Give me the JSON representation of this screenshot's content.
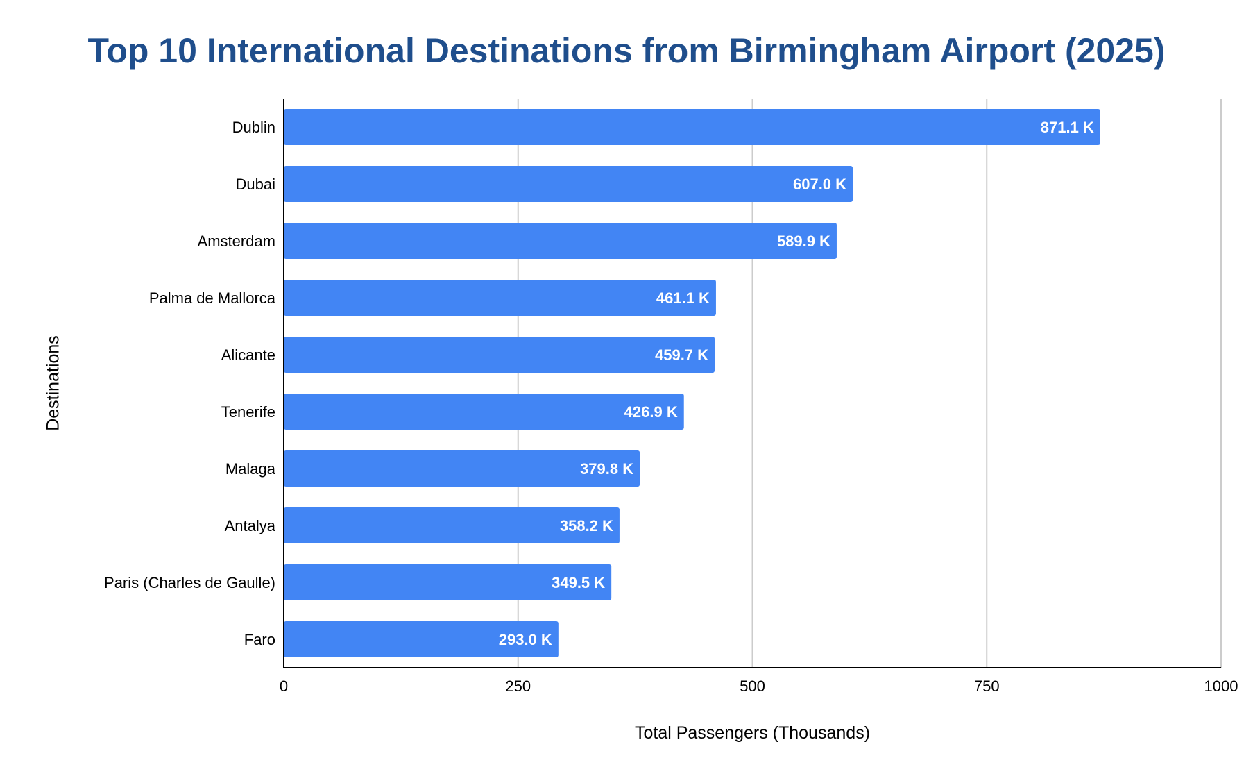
{
  "chart_data": {
    "type": "bar",
    "orientation": "horizontal",
    "title": "Top 10 International Destinations from Birmingham Airport (2025)",
    "xlabel": "Total Passengers (Thousands)",
    "ylabel": "Destinations",
    "categories": [
      "Dublin",
      "Dubai",
      "Amsterdam",
      "Palma de Mallorca",
      "Alicante",
      "Tenerife",
      "Malaga",
      "Antalya",
      "Paris (Charles de Gaulle)",
      "Faro"
    ],
    "values": [
      871.1,
      607.0,
      589.9,
      461.1,
      459.7,
      426.9,
      379.8,
      358.2,
      349.5,
      293.0
    ],
    "data_labels": [
      "871.1 K",
      "607.0 K",
      "589.9 K",
      "461.1 K",
      "459.7 K",
      "426.9 K",
      "379.8 K",
      "358.2 K",
      "349.5 K",
      "293.0 K"
    ],
    "xlim": [
      0,
      1000
    ],
    "xticks": [
      0,
      250,
      500,
      750,
      1000
    ],
    "xtick_labels": [
      "0",
      "250",
      "500",
      "750",
      "1000"
    ],
    "grid": true,
    "legend": "none",
    "colors": {
      "bar": "#4285f4",
      "title": "#1f4e8c",
      "grid": "#cccccc",
      "axis": "#000000",
      "data_label": "#ffffff",
      "text": "#000000"
    }
  }
}
